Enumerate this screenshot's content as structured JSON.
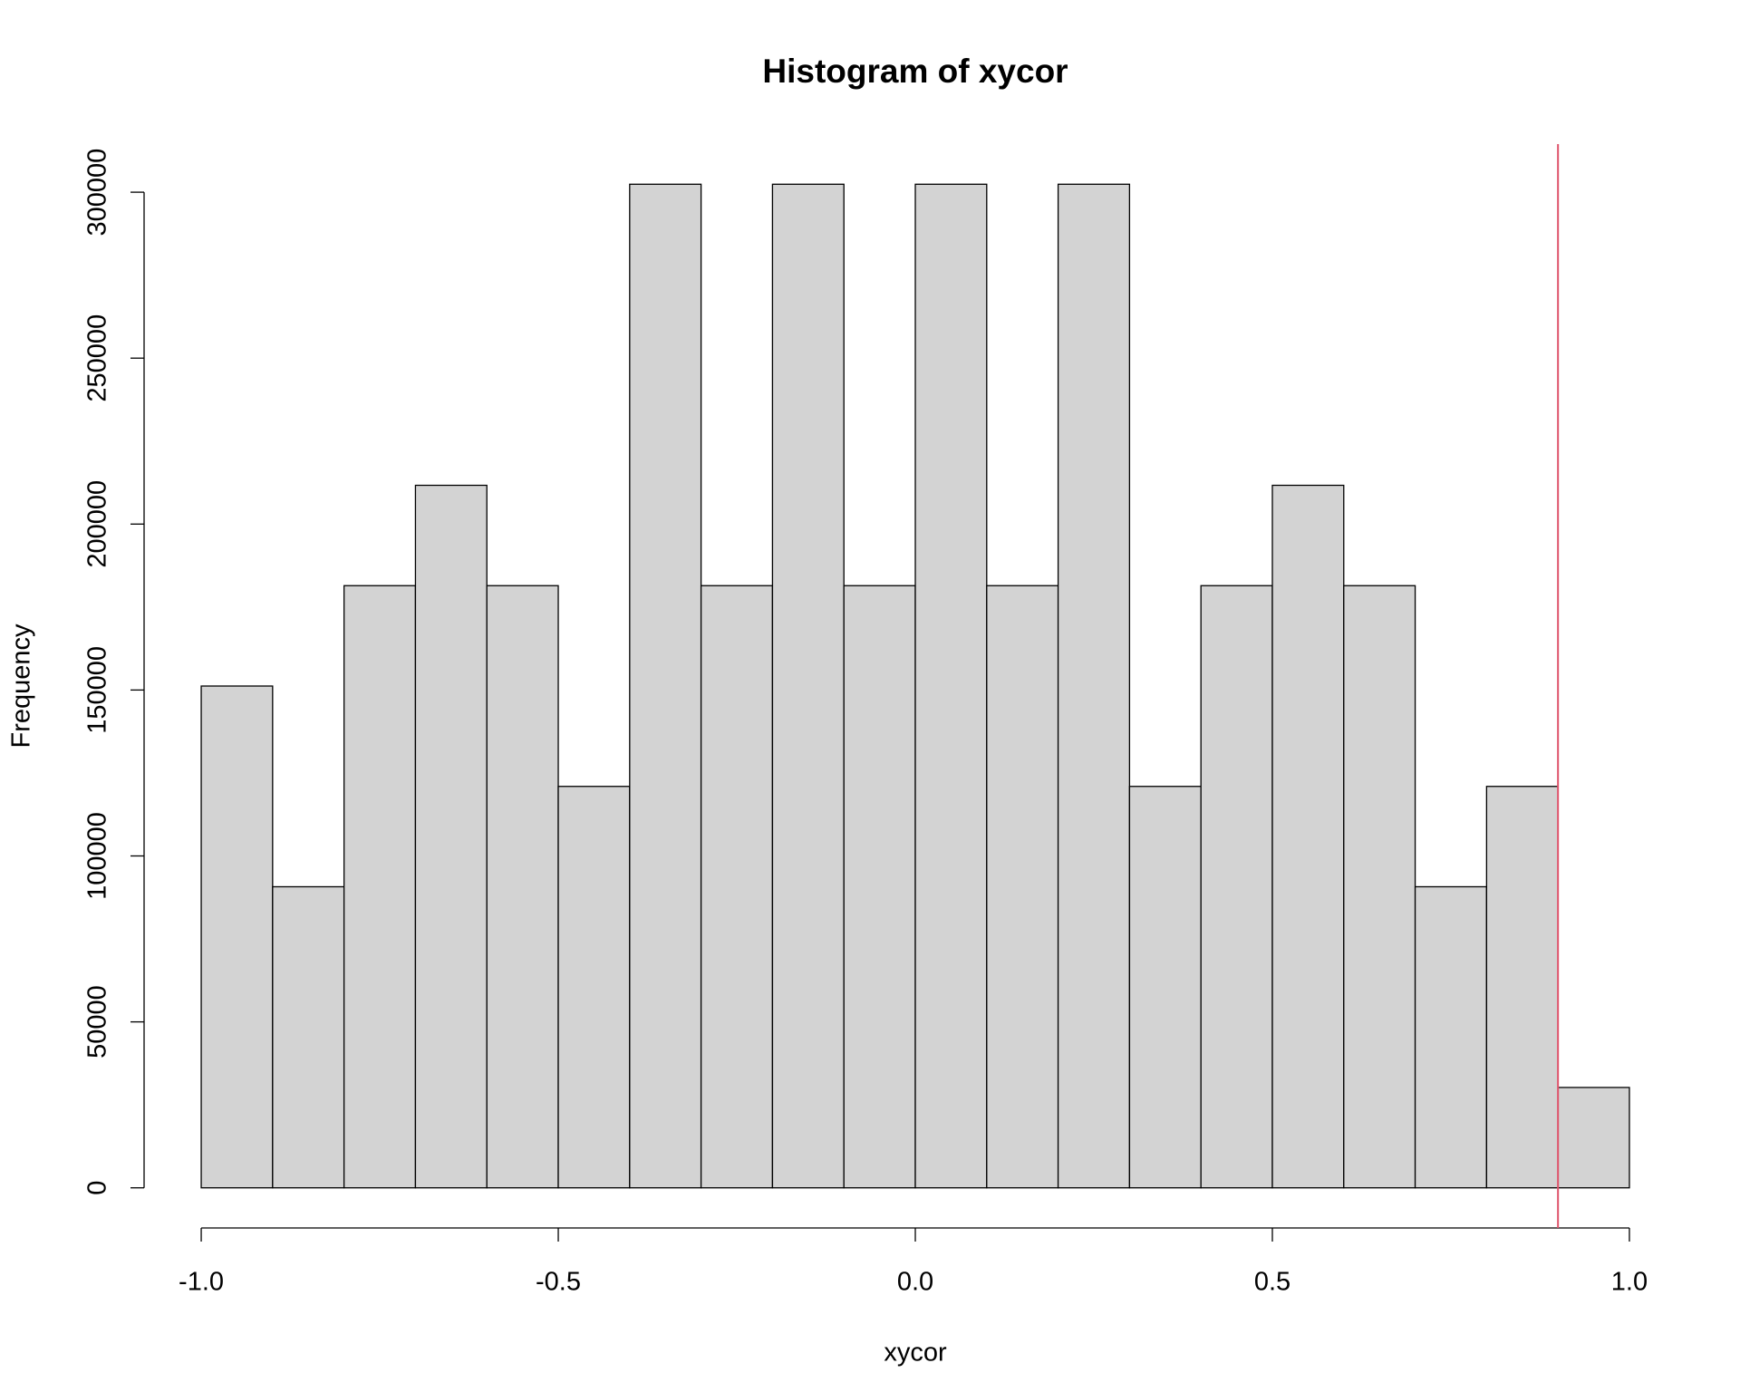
{
  "chart_data": {
    "type": "histogram",
    "title": "Histogram of xycor",
    "x_label": "xycor",
    "y_label": "Frequency",
    "bins": [
      -1.0,
      -0.9,
      -0.8,
      -0.7,
      -0.6,
      -0.5,
      -0.4,
      -0.3,
      -0.2,
      -0.1,
      0.0,
      0.1,
      0.2,
      0.3,
      0.4,
      0.5,
      0.6,
      0.7,
      0.8,
      0.9,
      1.0
    ],
    "values": [
      151200,
      90720,
      181440,
      211680,
      181440,
      120960,
      302400,
      181440,
      302400,
      181440,
      302400,
      181440,
      302400,
      120960,
      181440,
      211680,
      181440,
      90720,
      120960,
      30240
    ],
    "color": "#d3d3d3",
    "xlim": [
      -1.08,
      1.08
    ],
    "ylim": [
      -12096,
      314496
    ],
    "xticks": [
      {
        "value": -1.0,
        "label": "-1.0"
      },
      -0.5,
      {
        "value": 0.0,
        "label": "0.0"
      },
      0.5,
      {
        "value": 1.0,
        "label": "1.0"
      }
    ],
    "yticks": [
      0,
      50000,
      100000,
      150000,
      200000,
      250000,
      300000
    ],
    "vline": {
      "x": 0.9,
      "color": "#DF536B"
    }
  }
}
